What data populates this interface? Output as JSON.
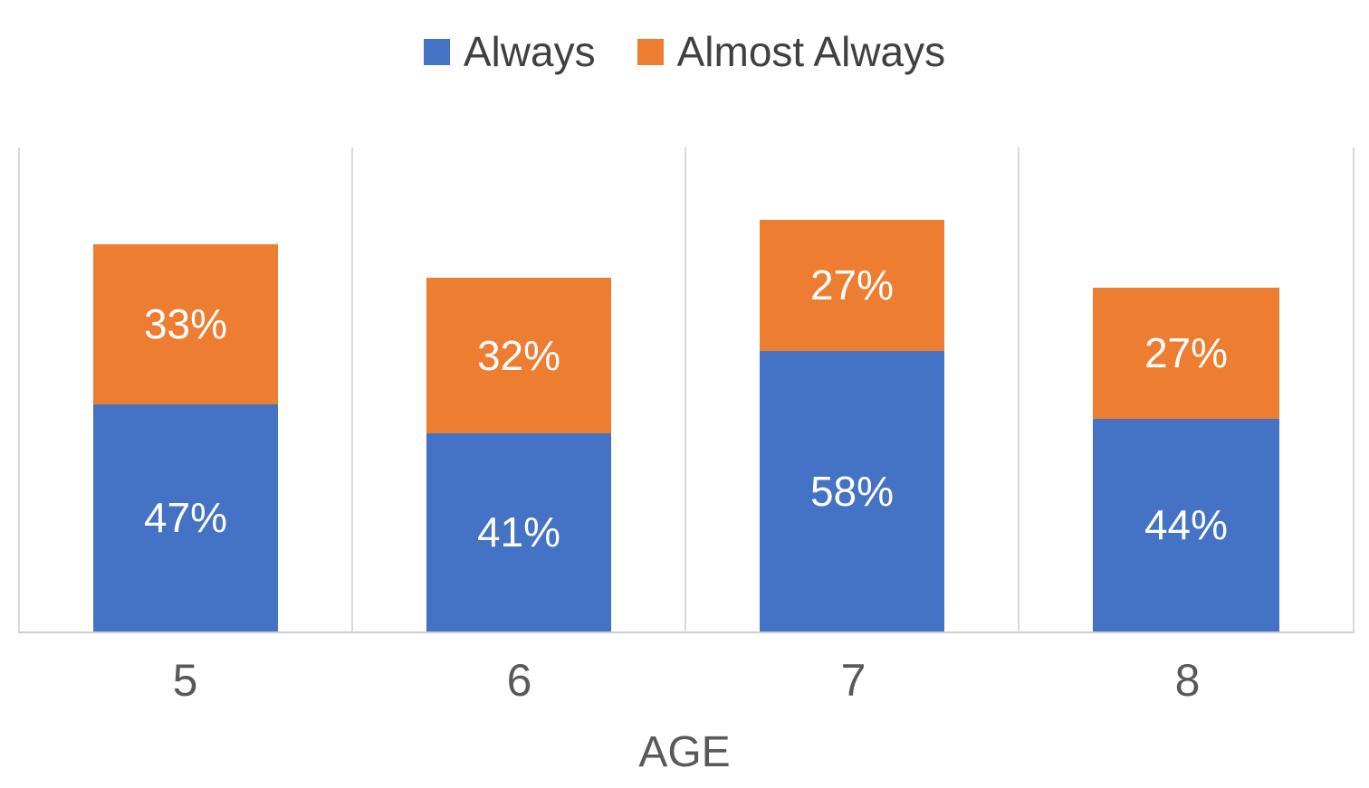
{
  "chart_data": {
    "type": "bar",
    "stacked": true,
    "orientation": "vertical",
    "title": "",
    "xlabel": "AGE",
    "ylabel": "",
    "ylim": [
      0,
      100
    ],
    "y_axis_visible": false,
    "grid": "vertical-category-dividers",
    "legend_position": "top",
    "categories": [
      "5",
      "6",
      "7",
      "8"
    ],
    "series": [
      {
        "name": "Always",
        "color": "#4472C4",
        "values": [
          47,
          41,
          58,
          44
        ],
        "labels": [
          "47%",
          "41%",
          "58%",
          "44%"
        ]
      },
      {
        "name": "Almost Always",
        "color": "#ED7D31",
        "values": [
          33,
          32,
          27,
          27
        ],
        "labels": [
          "33%",
          "32%",
          "27%",
          "27%"
        ]
      }
    ],
    "totals": [
      80,
      73,
      85,
      71
    ],
    "data_label_color": "#FFFFFF",
    "axis_text_color": "#595959",
    "legend_text_color": "#404040",
    "gridline_color": "#D9D9D9",
    "background_color": "#FFFFFF"
  }
}
